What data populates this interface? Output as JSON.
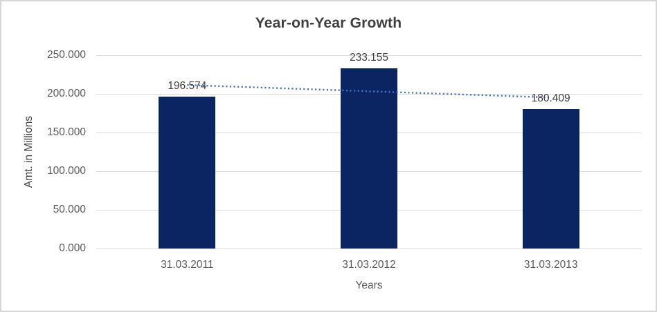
{
  "chart_data": {
    "type": "bar",
    "title": "Year-on-Year Growth",
    "xlabel": "Years",
    "ylabel": "Amt. in Millions",
    "categories": [
      "31.03.2011",
      "31.03.2012",
      "31.03.2013"
    ],
    "values": [
      196.574,
      233.155,
      180.409
    ],
    "data_labels": [
      "196.574",
      "233.155",
      "180.409"
    ],
    "ylim": [
      0,
      250
    ],
    "ytick_values": [
      0,
      50,
      100,
      150,
      200,
      250
    ],
    "ytick_labels": [
      "0.000",
      "50.000",
      "100.000",
      "150.000",
      "200.000",
      "250.000"
    ],
    "grid": true,
    "legend": "none",
    "bar_color": "#0b2563",
    "trendline": {
      "type": "linear",
      "style": "dotted",
      "color": "#4472c4"
    },
    "gridline_color": "#d9d9d9",
    "title_color": "#3f3f3f",
    "axis_text_color": "#595959",
    "data_label_color": "#404040"
  }
}
